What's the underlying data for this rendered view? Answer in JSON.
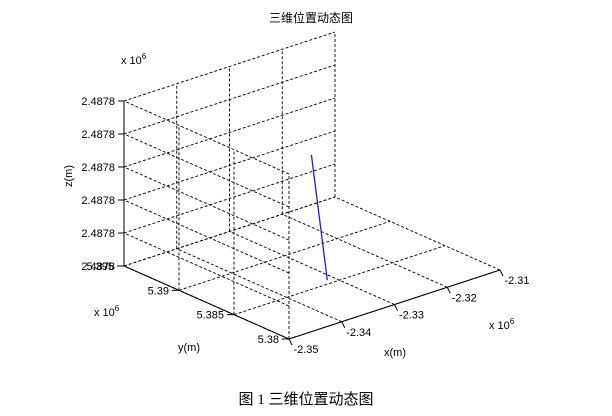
{
  "chart_data": {
    "type": "line",
    "projection": "3d",
    "title": "三维位置动态图",
    "xlabel": "x(m)",
    "ylabel": "y(m)",
    "zlabel": "z(m)",
    "x_exponent": {
      "base": "x 10",
      "power": "6"
    },
    "y_exponent": {
      "base": "x 10",
      "power": "6"
    },
    "z_exponent": {
      "base": "x 10",
      "power": "6"
    },
    "x_ticks": [
      "-2.35",
      "-2.34",
      "-2.33",
      "-2.32",
      "-2.31"
    ],
    "y_ticks": [
      "5.38",
      "5.385",
      "5.39",
      "5.395"
    ],
    "z_ticks": [
      "2.4878",
      "2.4878",
      "2.4878",
      "2.4878",
      "2.4878",
      "2.4878"
    ],
    "xlim": [
      -2.35,
      -2.31
    ],
    "ylim": [
      5.38,
      5.395
    ],
    "zlim": [
      2.4878,
      2.48785
    ],
    "grid": true,
    "line_color": "#1a1aff",
    "series": [
      {
        "x": [
          -2.3346,
          -2.3347
        ],
        "y": [
          5.3839,
          5.3853
        ],
        "z": [
          2.487804,
          2.48784
        ]
      }
    ]
  },
  "caption": "图 1  三维位置动态图"
}
